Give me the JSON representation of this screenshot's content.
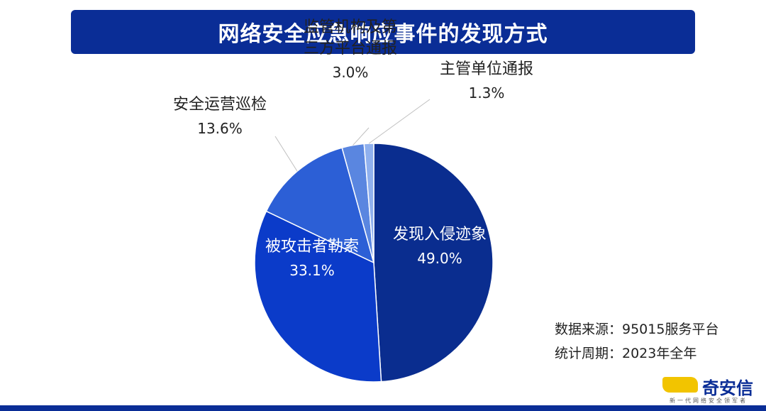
{
  "header": {
    "title": "网络安全应急响应事件的发现方式"
  },
  "chart_data": {
    "type": "pie",
    "title": "网络安全应急响应事件的发现方式",
    "unit": "%",
    "slices": [
      {
        "label": "发现入侵迹象",
        "value": 49.0,
        "value_label": "49.0%",
        "color": "#0a2d8f"
      },
      {
        "label": "被攻击者勒索",
        "value": 33.1,
        "value_label": "33.1%",
        "color": "#0b3bc9"
      },
      {
        "label": "安全运营巡检",
        "value": 13.6,
        "value_label": "13.6%",
        "color": "#2c5fd6"
      },
      {
        "label": "监管机构及第三方平台通报",
        "label_lines": [
          "监管机构及第",
          "三方平台通报"
        ],
        "value": 3.0,
        "value_label": "3.0%",
        "color": "#5a86e0"
      },
      {
        "label": "主管单位通报",
        "value": 1.3,
        "value_label": "1.3%",
        "color": "#8fb0ee"
      }
    ]
  },
  "notes": {
    "source": "数据来源：95015服务平台",
    "period": "统计周期：2023年全年"
  },
  "brand": {
    "name": "奇安信",
    "tagline": "新一代网络安全领军者"
  }
}
